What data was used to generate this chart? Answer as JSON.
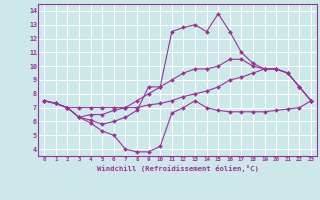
{
  "xlabel": "Windchill (Refroidissement éolien,°C)",
  "xlim": [
    -0.5,
    23.5
  ],
  "ylim": [
    3.5,
    14.5
  ],
  "yticks": [
    4,
    5,
    6,
    7,
    8,
    9,
    10,
    11,
    12,
    13,
    14
  ],
  "xticks": [
    0,
    1,
    2,
    3,
    4,
    5,
    6,
    7,
    8,
    9,
    10,
    11,
    12,
    13,
    14,
    15,
    16,
    17,
    18,
    19,
    20,
    21,
    22,
    23
  ],
  "bg_color": "#cce8e8",
  "grid_color": "#ffffff",
  "line_color": "#993399",
  "series": [
    [
      7.5,
      7.3,
      7.0,
      6.3,
      5.9,
      5.3,
      5.0,
      4.0,
      3.8,
      3.8,
      4.2,
      6.6,
      7.0,
      7.5,
      7.0,
      6.8,
      6.7,
      6.7,
      6.7,
      6.7,
      6.8,
      6.9,
      7.0,
      7.5
    ],
    [
      7.5,
      7.3,
      7.0,
      6.3,
      6.1,
      5.8,
      6.0,
      6.3,
      6.8,
      8.5,
      8.5,
      12.5,
      12.8,
      13.0,
      12.5,
      13.8,
      12.5,
      11.0,
      10.2,
      9.8,
      9.8,
      9.5,
      8.5,
      7.5
    ],
    [
      7.5,
      7.3,
      7.0,
      6.3,
      6.5,
      6.5,
      6.8,
      7.0,
      7.5,
      8.0,
      8.5,
      9.0,
      9.5,
      9.8,
      9.8,
      10.0,
      10.5,
      10.5,
      10.0,
      9.8,
      9.8,
      9.5,
      8.5,
      7.5
    ],
    [
      7.5,
      7.3,
      7.0,
      7.0,
      7.0,
      7.0,
      7.0,
      7.0,
      7.0,
      7.2,
      7.3,
      7.5,
      7.8,
      8.0,
      8.2,
      8.5,
      9.0,
      9.2,
      9.5,
      9.8,
      9.8,
      9.5,
      8.5,
      7.5
    ]
  ]
}
